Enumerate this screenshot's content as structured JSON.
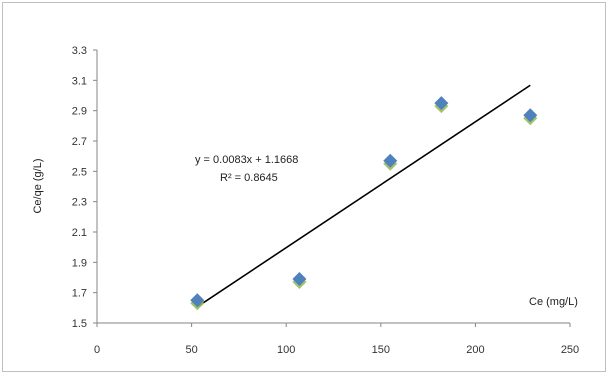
{
  "chart_data": {
    "type": "scatter",
    "xlabel": "Ce (mg/L)",
    "ylabel": "Ce/qe (g/L)",
    "xlim": [
      0,
      250
    ],
    "ylim": [
      1.5,
      3.3
    ],
    "x_ticks": [
      "0",
      "50",
      "100",
      "150",
      "200",
      "250"
    ],
    "y_ticks": [
      "1.5",
      "1.7",
      "1.9",
      "2.1",
      "2.3",
      "2.5",
      "2.7",
      "2.9",
      "3.1",
      "3.3"
    ],
    "points": [
      {
        "x": 53,
        "y": 1.65
      },
      {
        "x": 107,
        "y": 1.79
      },
      {
        "x": 155,
        "y": 2.57
      },
      {
        "x": 182,
        "y": 2.95
      },
      {
        "x": 229,
        "y": 2.87
      }
    ],
    "trendline": {
      "slope": 0.0083,
      "intercept": 1.1668,
      "x_range": [
        53,
        229
      ]
    },
    "equation_text": "y = 0.0083x + 1.1668",
    "r2_text": "R² = 0.8645",
    "marker_color": "#4f81bd",
    "shadow_color": "#9bbb59",
    "line_color": "#000000",
    "grid": false
  }
}
